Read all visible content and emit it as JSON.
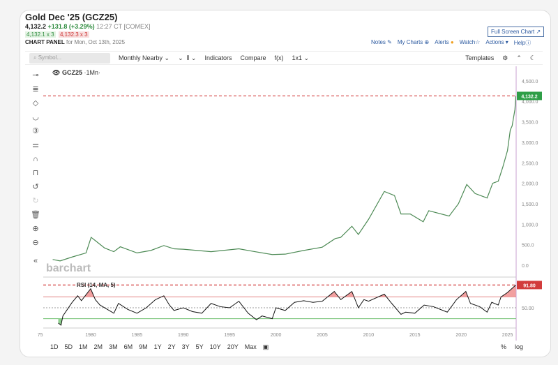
{
  "header": {
    "title": "Gold Dec '25 (GCZ25)",
    "last": "4,132.2",
    "change": "+131.8 (+3.29%)",
    "time": "12:27 CT [COMEX]",
    "bid": "4,132.1 x 3",
    "ask": "4,132.3 x 3",
    "panel_label": "CHART PANEL",
    "panel_date": "for Mon, Oct 13th, 2025"
  },
  "actions": {
    "full_screen": "Full Screen Chart ↗",
    "notes": "Notes",
    "my_charts": "My Charts",
    "alerts": "Alerts",
    "watch": "Watch",
    "actions": "Actions",
    "help": "Help"
  },
  "toolbar": {
    "search_placeholder": "Symbol...",
    "period": "Monthly Nearby",
    "indicators": "Indicators",
    "compare": "Compare",
    "fx": "f(x)",
    "layout": "1x1",
    "templates": "Templates"
  },
  "legend": {
    "symbol": "GCZ25",
    "interval": "·1Mn·",
    "rsi": "RSI (14, MA, 5)"
  },
  "logo": "barchart",
  "colors": {
    "up": "#2e9e47",
    "down": "#d23c3c",
    "last_line": "#d23c3c",
    "price_tag": "#2e9e47",
    "rsi_tag": "#d23c3c",
    "accent": "#2c5aa0"
  },
  "ranges": [
    "1D",
    "5D",
    "1M",
    "2M",
    "3M",
    "6M",
    "9M",
    "1Y",
    "2Y",
    "3Y",
    "5Y",
    "10Y",
    "20Y",
    "Max"
  ],
  "bottom_right": {
    "percent": "%",
    "log": "log"
  },
  "chart_data": [
    {
      "type": "line",
      "title": "GCZ25 ·1Mn·",
      "ylim": [
        0,
        4500
      ],
      "yticks": [
        "4,500.0",
        "4,000.0",
        "3,500.0",
        "3,000.0",
        "2,500.0",
        "2,000.0",
        "1,500.0",
        "1,000.0",
        "500.0",
        "0.0"
      ],
      "last_value_label": "4,132.2",
      "last_value": 4132.2,
      "x": [
        1975.9,
        1976.7,
        1978,
        1979.5,
        1980.05,
        1980.5,
        1981.5,
        1982.5,
        1983.2,
        1985,
        1986.5,
        1987.9,
        1989,
        1990,
        1993,
        1996,
        1997.5,
        1999.6,
        2001,
        2003,
        2005,
        2006.4,
        2007,
        2008.2,
        2008.9,
        2010,
        2011.7,
        2012.8,
        2013.5,
        2014.5,
        2015.9,
        2016.5,
        2018.7,
        2019.7,
        2020.6,
        2021.5,
        2022.8,
        2023.4,
        2024,
        2024.5,
        2025,
        2025.3,
        2025.5,
        2025.8,
        2025.9
      ],
      "values": [
        140,
        105,
        200,
        300,
        680,
        600,
        420,
        330,
        450,
        300,
        360,
        480,
        400,
        390,
        330,
        400,
        340,
        260,
        270,
        360,
        440,
        650,
        680,
        950,
        750,
        1120,
        1800,
        1700,
        1250,
        1250,
        1060,
        1330,
        1200,
        1500,
        1970,
        1750,
        1640,
        2000,
        2050,
        2400,
        2800,
        3300,
        3400,
        3800,
        4132.2
      ]
    },
    {
      "type": "line",
      "title": "RSI (14, MA, 5)",
      "ylim": [
        0,
        100
      ],
      "levels": [
        70,
        50,
        30
      ],
      "ytick": "50.00",
      "last_value_label": "91.80",
      "last_value": 91.8,
      "xticks": [
        "75",
        "1980",
        "1985",
        "1990",
        "1995",
        "2000",
        "2005",
        "2010",
        "2015",
        "2020",
        "2025"
      ],
      "x": [
        1976.5,
        1976.8,
        1977,
        1978,
        1978.6,
        1979,
        1980,
        1980.5,
        1981,
        1982.5,
        1983,
        1984,
        1985,
        1986,
        1987,
        1987.9,
        1988.5,
        1989,
        1990,
        1991,
        1992,
        1993,
        1994,
        1995,
        1996,
        1997,
        1997.9,
        1998.5,
        1999.6,
        2000,
        2001,
        2002,
        2003,
        2004,
        2005,
        2006.3,
        2007,
        2008.2,
        2008.9,
        2009.5,
        2010,
        2011.7,
        2012.5,
        2013.5,
        2014,
        2015,
        2016,
        2017,
        2018.5,
        2019.5,
        2020.5,
        2021,
        2022,
        2022.8,
        2023.3,
        2024,
        2024.3,
        2025,
        2025.9
      ],
      "values": [
        22,
        18,
        35,
        60,
        72,
        63,
        85,
        65,
        55,
        40,
        58,
        47,
        40,
        50,
        65,
        72,
        55,
        45,
        50,
        43,
        40,
        58,
        52,
        50,
        62,
        40,
        28,
        35,
        30,
        50,
        45,
        60,
        63,
        60,
        62,
        80,
        65,
        80,
        50,
        65,
        62,
        75,
        58,
        38,
        42,
        40,
        55,
        52,
        42,
        65,
        80,
        58,
        52,
        42,
        60,
        55,
        70,
        78,
        91.8
      ]
    }
  ]
}
